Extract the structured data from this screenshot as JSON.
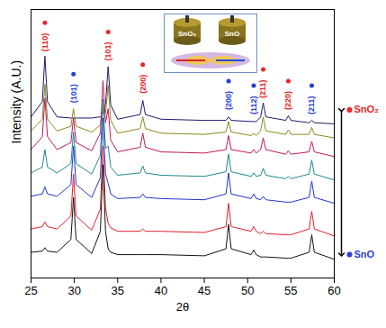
{
  "chart_data": {
    "type": "line",
    "xlabel": "2θ",
    "ylabel": "Intensity (A.U.)",
    "xlim": [
      25,
      60
    ],
    "xticks": [
      25,
      30,
      35,
      40,
      45,
      50,
      55,
      60
    ],
    "ylim": [
      0,
      115
    ],
    "tick_labels": "x",
    "grid": false,
    "x": [
      25,
      26.3,
      26.6,
      26.9,
      28,
      29.6,
      29.9,
      30.2,
      32,
      33.0,
      33.3,
      33.6,
      33.9,
      34.2,
      35,
      37.6,
      37.9,
      38.2,
      40,
      45,
      47.5,
      47.8,
      48.1,
      50.4,
      50.7,
      51.0,
      51.5,
      51.8,
      52.1,
      54.4,
      54.7,
      55.0,
      57.1,
      57.4,
      57.7,
      60
    ],
    "series": [
      {
        "color": "#1a1a6e",
        "values": [
          69,
          75.5,
          95,
          75.5,
          69,
          68.5,
          68.5,
          68.5,
          68.5,
          69,
          70.5,
          74.5,
          90.5,
          74,
          68,
          70,
          76,
          70,
          68,
          67.5,
          67.5,
          69,
          67.5,
          67,
          67,
          67,
          69,
          75,
          69,
          67.5,
          69.5,
          67.5,
          66.5,
          67.5,
          66.5,
          66
        ]
      },
      {
        "color": "#8a8a1e",
        "values": [
          63,
          68,
          83,
          68,
          63,
          65,
          72.5,
          65,
          62.5,
          65.5,
          74.5,
          70.5,
          82.5,
          67.5,
          62,
          64,
          69,
          64,
          62,
          61.5,
          62.5,
          67,
          62.5,
          61,
          62,
          61,
          63,
          69,
          63,
          61.5,
          63.5,
          61.5,
          61.5,
          64.5,
          61.5,
          60
        ]
      },
      {
        "color": "#c2185b",
        "values": [
          55,
          60.5,
          77,
          60.5,
          55,
          58,
          68.5,
          58,
          54.5,
          62,
          84.5,
          66.5,
          72.5,
          59,
          54,
          56,
          62,
          56,
          54,
          53.5,
          55,
          61,
          55,
          53.5,
          55,
          53.5,
          55,
          60,
          55,
          53,
          54.5,
          53,
          54,
          58.5,
          54,
          52
        ]
      },
      {
        "color": "#1f8a8a",
        "values": [
          45,
          47.5,
          55,
          47.5,
          45,
          49,
          62.5,
          49,
          44.5,
          52.5,
          76.5,
          55.5,
          56.5,
          47.5,
          44,
          45,
          48,
          45,
          44,
          43.5,
          45.5,
          53,
          45.5,
          43.5,
          45,
          43.5,
          44,
          47,
          44,
          42.5,
          43.5,
          42.5,
          44.5,
          50.5,
          44.5,
          42
        ]
      },
      {
        "color": "#2233cc",
        "values": [
          35,
          36,
          39,
          36,
          35,
          40,
          56.5,
          40,
          34.5,
          43,
          68.5,
          44.5,
          40.5,
          36,
          34,
          34.5,
          36,
          34.5,
          34,
          33.5,
          36,
          45,
          36,
          34,
          36,
          34,
          33.5,
          35,
          33.5,
          32.5,
          32.5,
          32.5,
          34.5,
          41.5,
          34.5,
          32
        ]
      },
      {
        "color": "#e0202a",
        "values": [
          21,
          22,
          24,
          22,
          21,
          26.5,
          44.5,
          26.5,
          20.5,
          29.5,
          56.5,
          30,
          23.5,
          21.5,
          20,
          20,
          21,
          20,
          20,
          19.5,
          22,
          32,
          22,
          20,
          22,
          20,
          19,
          20,
          19,
          18.5,
          18.5,
          18.5,
          21,
          28.5,
          21,
          18
        ]
      },
      {
        "color": "#111111",
        "values": [
          11,
          11.5,
          13,
          11.5,
          11,
          16.5,
          34.5,
          16.5,
          10.5,
          20,
          48.5,
          20,
          12.5,
          11,
          10,
          10,
          10,
          10,
          10,
          9.5,
          12.5,
          23,
          12.5,
          10,
          12,
          10,
          9,
          9,
          9,
          8.5,
          8.5,
          8.5,
          11,
          18.5,
          11,
          8
        ]
      }
    ],
    "annotations": [
      {
        "text": "(110)",
        "x": 26.6,
        "y": 97,
        "color": "#e8262a"
      },
      {
        "text": "(101)",
        "x": 29.9,
        "y": 75,
        "color": "#2a3fd6"
      },
      {
        "text": "(101)",
        "x": 33.9,
        "y": 93,
        "color": "#e8262a"
      },
      {
        "text": "(200)",
        "x": 37.9,
        "y": 79,
        "color": "#e8262a"
      },
      {
        "text": "(200)",
        "x": 47.8,
        "y": 72,
        "color": "#2a3fd6"
      },
      {
        "text": "(112)",
        "x": 50.7,
        "y": 70,
        "color": "#2a3fd6"
      },
      {
        "text": "(211)",
        "x": 51.8,
        "y": 77,
        "color": "#e8262a"
      },
      {
        "text": "(220)",
        "x": 54.7,
        "y": 72,
        "color": "#e8262a"
      },
      {
        "text": "(211)",
        "x": 57.4,
        "y": 70,
        "color": "#2a3fd6"
      }
    ],
    "side_labels": [
      {
        "text": "SnO₂",
        "y": 72,
        "color": "#e8262a"
      },
      {
        "text": "SnO",
        "y": 10,
        "color": "#2a3fd6"
      }
    ],
    "inset_labels": [
      "SnO₂",
      "SnO"
    ]
  }
}
